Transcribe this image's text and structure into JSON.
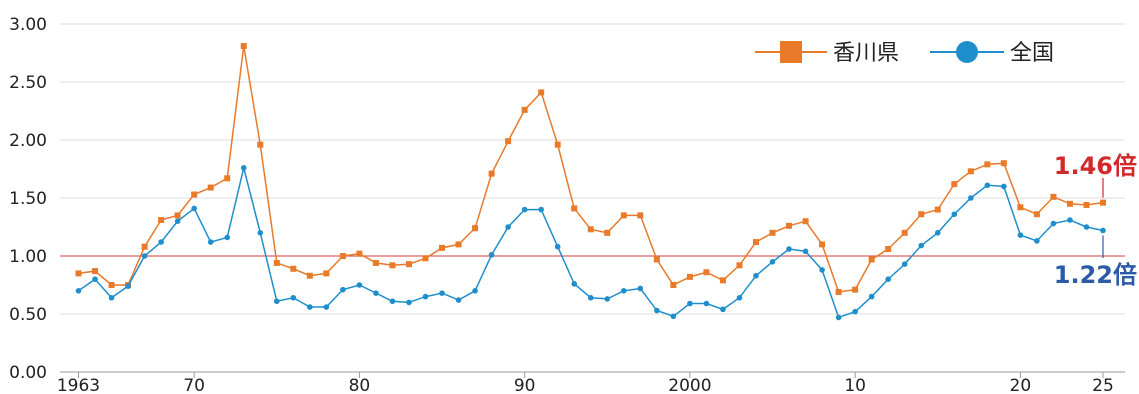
{
  "chart_data": {
    "type": "line",
    "title": "",
    "xlabel": "",
    "ylabel": "",
    "x_range": [
      1963,
      2025
    ],
    "ylim": [
      0,
      3
    ],
    "y_ticks": [
      "0.00",
      "0.50",
      "1.00",
      "1.50",
      "2.00",
      "2.50",
      "3.00"
    ],
    "x_ticks": [
      {
        "year": 1963,
        "label": "1963"
      },
      {
        "year": 1970,
        "label": "70"
      },
      {
        "year": 1980,
        "label": "80"
      },
      {
        "year": 1990,
        "label": "90"
      },
      {
        "year": 2000,
        "label": "2000"
      },
      {
        "year": 2010,
        "label": "10"
      },
      {
        "year": 2020,
        "label": "20"
      },
      {
        "year": 2025,
        "label": "25"
      }
    ],
    "grid": "horizontal",
    "reference_line": {
      "y": 1.0,
      "color": "#e06060"
    },
    "legend_position": "top-right",
    "x": [
      1963,
      1964,
      1965,
      1966,
      1967,
      1968,
      1969,
      1970,
      1971,
      1972,
      1973,
      1974,
      1975,
      1976,
      1977,
      1978,
      1979,
      1980,
      1981,
      1982,
      1983,
      1984,
      1985,
      1986,
      1987,
      1988,
      1989,
      1990,
      1991,
      1992,
      1993,
      1994,
      1995,
      1996,
      1997,
      1998,
      1999,
      2000,
      2001,
      2002,
      2003,
      2004,
      2005,
      2006,
      2007,
      2008,
      2009,
      2010,
      2011,
      2012,
      2013,
      2014,
      2015,
      2016,
      2017,
      2018,
      2019,
      2020,
      2021,
      2022,
      2023,
      2024,
      2025
    ],
    "series": [
      {
        "name": "香川県",
        "color": "#e87a2a",
        "marker": "square",
        "values": [
          0.85,
          0.87,
          0.75,
          0.75,
          1.08,
          1.31,
          1.35,
          1.53,
          1.59,
          1.67,
          2.81,
          1.96,
          0.94,
          0.89,
          0.83,
          0.85,
          1.0,
          1.02,
          0.94,
          0.92,
          0.93,
          0.98,
          1.07,
          1.1,
          1.24,
          1.71,
          1.99,
          2.26,
          2.41,
          1.96,
          1.41,
          1.23,
          1.2,
          1.35,
          1.35,
          0.97,
          0.75,
          0.82,
          0.86,
          0.79,
          0.92,
          1.12,
          1.2,
          1.26,
          1.3,
          1.1,
          0.69,
          0.71,
          0.97,
          1.06,
          1.2,
          1.36,
          1.4,
          1.62,
          1.73,
          1.79,
          1.8,
          1.42,
          1.36,
          1.51,
          1.45,
          1.44,
          1.46
        ]
      },
      {
        "name": "全国",
        "color": "#1e8fcc",
        "marker": "circle",
        "values": [
          0.7,
          0.8,
          0.64,
          0.74,
          1.0,
          1.12,
          1.3,
          1.41,
          1.12,
          1.16,
          1.76,
          1.2,
          0.61,
          0.64,
          0.56,
          0.56,
          0.71,
          0.75,
          0.68,
          0.61,
          0.6,
          0.65,
          0.68,
          0.62,
          0.7,
          1.01,
          1.25,
          1.4,
          1.4,
          1.08,
          0.76,
          0.64,
          0.63,
          0.7,
          0.72,
          0.53,
          0.48,
          0.59,
          0.59,
          0.54,
          0.64,
          0.83,
          0.95,
          1.06,
          1.04,
          0.88,
          0.47,
          0.52,
          0.65,
          0.8,
          0.93,
          1.09,
          1.2,
          1.36,
          1.5,
          1.61,
          1.6,
          1.18,
          1.13,
          1.28,
          1.31,
          1.25,
          1.22
        ]
      }
    ],
    "annotations": [
      {
        "text": "1.46倍",
        "series": "香川県",
        "color": "#d02a2a"
      },
      {
        "text": "1.22倍",
        "series": "全国",
        "color": "#2a5aa8"
      }
    ]
  }
}
